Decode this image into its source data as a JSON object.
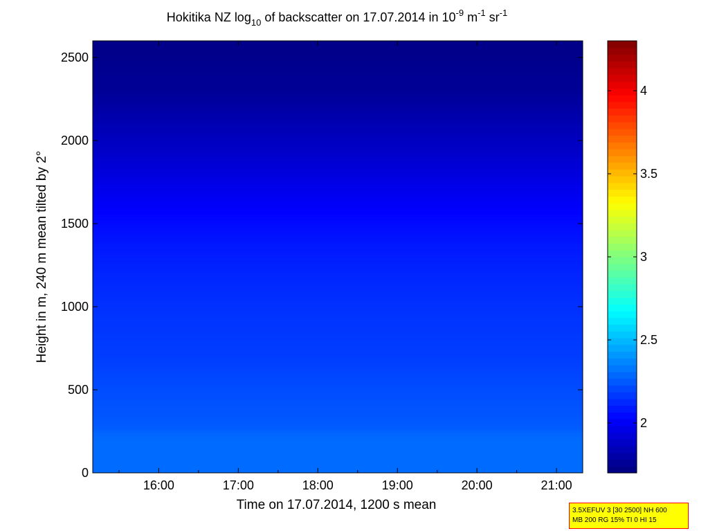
{
  "chart_data": {
    "type": "heatmap",
    "title": {
      "prefix": "Hokitika NZ log",
      "prefix_sub": "10",
      "middle": " of backscatter on 17.07.2014 in 10",
      "exp1": "-9",
      "unit1": " m",
      "exp2": "-1",
      "unit2": " sr",
      "exp3": "-1"
    },
    "xlabel": "Time on 17.07.2014, 1200 s mean",
    "ylabel": "Height in m, 240 m mean tilted by 2°",
    "xlim": [
      "15:10",
      "21:20"
    ],
    "xlim_hours": [
      15.17,
      21.33
    ],
    "x_ticks": [
      "16:00",
      "17:00",
      "18:00",
      "19:00",
      "20:00",
      "21:00"
    ],
    "x_tick_values": [
      16,
      17,
      18,
      19,
      20,
      21
    ],
    "ylim": [
      0,
      2600
    ],
    "y_ticks": [
      "0",
      "500",
      "1000",
      "1500",
      "2000",
      "2500"
    ],
    "y_tick_values": [
      0,
      500,
      1000,
      1500,
      2000,
      2500
    ],
    "colorbar": {
      "range": [
        1.7,
        4.3
      ],
      "ticks": [
        "2",
        "2.5",
        "3",
        "3.5",
        "4"
      ],
      "tick_values": [
        2,
        2.5,
        3,
        3.5,
        4
      ],
      "colormap": "jet"
    },
    "value_profile": {
      "height_m": [
        0,
        200,
        300,
        500,
        700,
        1000,
        1300,
        1500,
        1700,
        1900,
        2100,
        2300,
        2600
      ],
      "log10_backscatter": [
        2.3,
        2.3,
        2.25,
        2.22,
        2.18,
        2.15,
        2.1,
        2.05,
        1.98,
        1.9,
        1.83,
        1.76,
        1.72
      ]
    },
    "grid": false
  },
  "info_box": {
    "line1": "3.5XEFUV 3 [30 2500] NH 600",
    "line2": "MB 200 RG 15% TI 0 HI 15"
  }
}
